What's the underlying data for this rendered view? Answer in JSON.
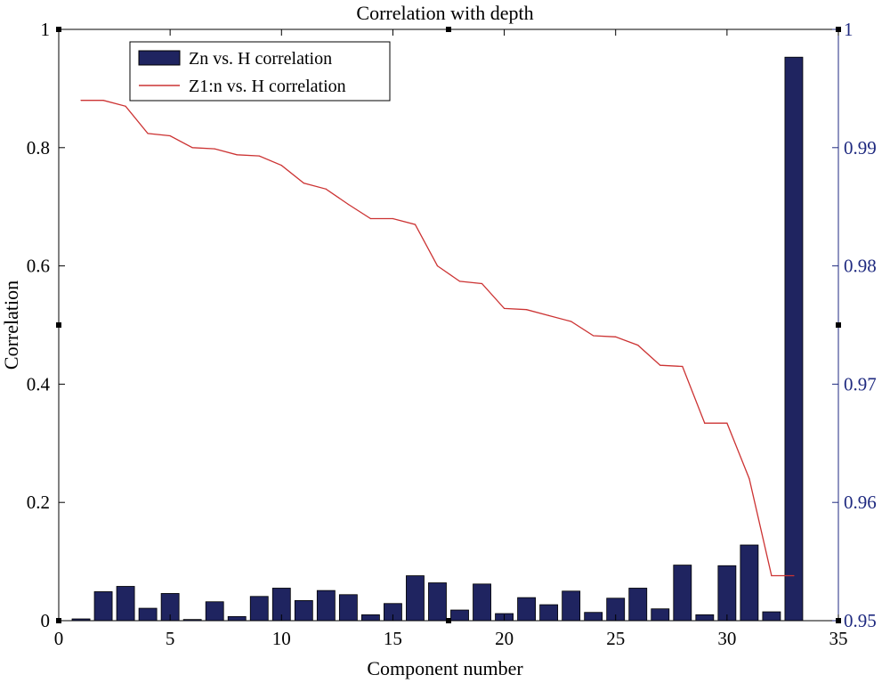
{
  "chart_data": {
    "type": "bar+line",
    "title": "Correlation with depth",
    "xlabel": "Component number",
    "ylabel": "Correlation",
    "xlim": [
      0,
      35
    ],
    "ylim_left": [
      0,
      1
    ],
    "ylim_right": [
      0.95,
      1.0
    ],
    "x_ticks": [
      0,
      5,
      10,
      15,
      20,
      25,
      30,
      35
    ],
    "y_ticks_left": [
      0,
      0.2,
      0.4,
      0.6,
      0.8,
      1
    ],
    "y_ticks_right": [
      0.95,
      0.96,
      0.97,
      0.98,
      0.99,
      1
    ],
    "x_tick_labels": [
      "0",
      "5",
      "10",
      "15",
      "20",
      "25",
      "30",
      "35"
    ],
    "y_tick_labels_left": [
      "0",
      "0.2",
      "0.4",
      "0.6",
      "0.8",
      "1"
    ],
    "y_tick_labels_right": [
      "0.95",
      "0.96",
      "0.97",
      "0.98",
      "0.99",
      "1"
    ],
    "legend": {
      "position": "top-left",
      "entries": [
        "Zn vs. H correlation",
        "Z1:n vs. H correlation"
      ]
    },
    "series": [
      {
        "name": "Zn vs. H correlation",
        "kind": "bar",
        "axis": "left",
        "color": "#1f2460",
        "x": [
          1,
          2,
          3,
          4,
          5,
          6,
          7,
          8,
          9,
          10,
          11,
          12,
          13,
          14,
          15,
          16,
          17,
          18,
          19,
          20,
          21,
          22,
          23,
          24,
          25,
          26,
          27,
          28,
          29,
          30,
          31,
          32,
          33
        ],
        "values": [
          0.003,
          0.049,
          0.058,
          0.021,
          0.046,
          0.002,
          0.032,
          0.007,
          0.041,
          0.055,
          0.034,
          0.051,
          0.044,
          0.01,
          0.029,
          0.076,
          0.064,
          0.018,
          0.062,
          0.012,
          0.039,
          0.027,
          0.05,
          0.014,
          0.038,
          0.055,
          0.02,
          0.094,
          0.01,
          0.093,
          0.128,
          0.015,
          0.953
        ]
      },
      {
        "name": "Z1:n vs. H correlation",
        "kind": "line",
        "axis": "right",
        "color": "#cc3333",
        "x": [
          1,
          2,
          3,
          4,
          5,
          6,
          7,
          8,
          9,
          10,
          11,
          12,
          13,
          14,
          15,
          16,
          17,
          18,
          19,
          20,
          21,
          22,
          23,
          24,
          25,
          26,
          27,
          28,
          29,
          30,
          31,
          32,
          33
        ],
        "values": [
          0.994,
          0.994,
          0.9935,
          0.9912,
          0.991,
          0.99,
          0.9899,
          0.9894,
          0.9893,
          0.9885,
          0.987,
          0.9865,
          0.9852,
          0.984,
          0.984,
          0.9835,
          0.98,
          0.9787,
          0.9785,
          0.9764,
          0.9763,
          0.9758,
          0.9753,
          0.9741,
          0.974,
          0.9733,
          0.9716,
          0.9715,
          0.9667,
          0.9667,
          0.962,
          0.9538,
          0.9538
        ]
      }
    ]
  }
}
